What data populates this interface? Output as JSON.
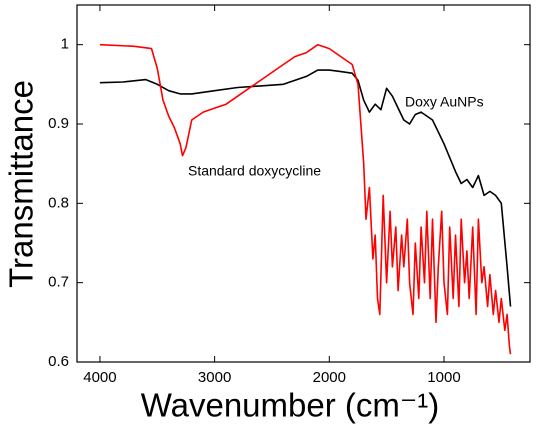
{
  "chart_data": {
    "type": "line",
    "xlabel": "Wavenumber (cm⁻¹)",
    "ylabel": "Transmittance",
    "xlim": [
      4200,
      250
    ],
    "ylim": [
      0.6,
      1.05
    ],
    "xticks": [
      4000,
      3000,
      2000,
      1000
    ],
    "yticks": [
      0.6,
      0.7,
      0.8,
      0.9,
      1
    ],
    "series": [
      {
        "name": "Doxy AuNPs",
        "color": "#000000",
        "x": [
          4000,
          3800,
          3600,
          3500,
          3400,
          3300,
          3200,
          3000,
          2800,
          2600,
          2400,
          2200,
          2100,
          2000,
          1900,
          1800,
          1750,
          1700,
          1650,
          1600,
          1550,
          1500,
          1450,
          1400,
          1350,
          1300,
          1250,
          1200,
          1100,
          1000,
          900,
          850,
          800,
          750,
          700,
          650,
          600,
          550,
          500,
          450,
          420
        ],
        "values": [
          0.952,
          0.953,
          0.956,
          0.95,
          0.942,
          0.938,
          0.938,
          0.942,
          0.946,
          0.948,
          0.95,
          0.96,
          0.968,
          0.968,
          0.966,
          0.964,
          0.955,
          0.93,
          0.915,
          0.925,
          0.918,
          0.945,
          0.935,
          0.92,
          0.905,
          0.9,
          0.912,
          0.915,
          0.905,
          0.875,
          0.84,
          0.825,
          0.83,
          0.82,
          0.835,
          0.81,
          0.815,
          0.81,
          0.8,
          0.72,
          0.67
        ]
      },
      {
        "name": "Standard doxycycline",
        "color": "#ff0000",
        "x": [
          4000,
          3700,
          3550,
          3500,
          3450,
          3400,
          3350,
          3300,
          3280,
          3250,
          3200,
          3100,
          3000,
          2900,
          2800,
          2700,
          2600,
          2500,
          2400,
          2300,
          2200,
          2100,
          2000,
          1900,
          1800,
          1750,
          1700,
          1680,
          1650,
          1620,
          1600,
          1580,
          1560,
          1530,
          1500,
          1470,
          1450,
          1420,
          1400,
          1370,
          1350,
          1320,
          1300,
          1270,
          1250,
          1220,
          1200,
          1170,
          1150,
          1120,
          1100,
          1070,
          1050,
          1020,
          1000,
          970,
          950,
          920,
          900,
          870,
          850,
          820,
          800,
          780,
          750,
          720,
          700,
          670,
          650,
          620,
          600,
          570,
          550,
          520,
          500,
          470,
          450,
          430,
          420
        ],
        "values": [
          1.0,
          0.998,
          0.995,
          0.97,
          0.93,
          0.91,
          0.895,
          0.875,
          0.86,
          0.87,
          0.905,
          0.915,
          0.92,
          0.925,
          0.935,
          0.945,
          0.955,
          0.965,
          0.975,
          0.985,
          0.99,
          1.0,
          0.995,
          0.985,
          0.975,
          0.95,
          0.85,
          0.78,
          0.82,
          0.73,
          0.76,
          0.68,
          0.66,
          0.81,
          0.7,
          0.79,
          0.72,
          0.77,
          0.69,
          0.76,
          0.72,
          0.78,
          0.7,
          0.66,
          0.75,
          0.68,
          0.77,
          0.7,
          0.79,
          0.68,
          0.78,
          0.65,
          0.72,
          0.79,
          0.7,
          0.66,
          0.77,
          0.68,
          0.76,
          0.67,
          0.78,
          0.7,
          0.74,
          0.68,
          0.77,
          0.66,
          0.78,
          0.7,
          0.72,
          0.67,
          0.71,
          0.66,
          0.69,
          0.65,
          0.68,
          0.64,
          0.66,
          0.62,
          0.61
        ]
      }
    ]
  }
}
